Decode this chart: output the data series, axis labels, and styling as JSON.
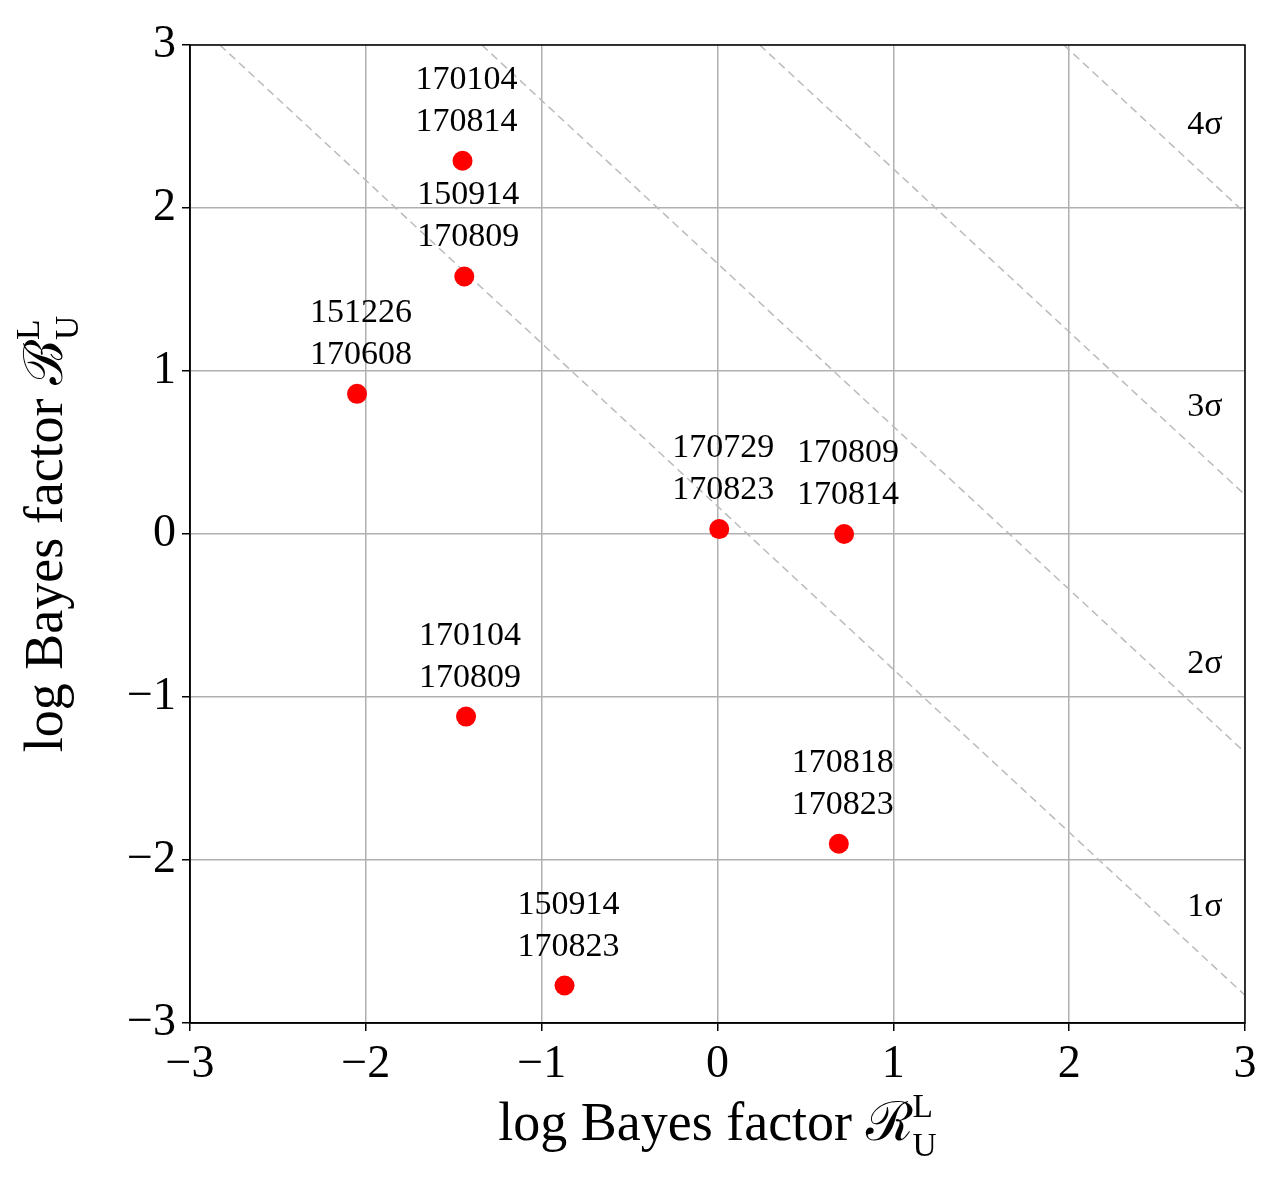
{
  "chart_data": {
    "type": "scatter",
    "xlabel": "log Bayes factor ℛ$^{L}$$_{U}$",
    "ylabel": "log Bayes factor ℬ$^{L}$$_{U}$",
    "xlim": [
      -3,
      3
    ],
    "ylim": [
      -3,
      3
    ],
    "xticks": [
      {
        "value": -3,
        "label": "−3"
      },
      {
        "value": -2,
        "label": "−2"
      },
      {
        "value": -1,
        "label": "−1"
      },
      0,
      1,
      2,
      3
    ],
    "yticks": [
      {
        "value": -3,
        "label": "−3"
      },
      {
        "value": -2,
        "label": "−2"
      },
      {
        "value": -1,
        "label": "−1"
      },
      0,
      1,
      2,
      3
    ],
    "grid": true,
    "marker": "circle",
    "series": [
      {
        "type": "scatter",
        "color": "#ff0000",
        "x": [
          -1.45,
          -1.44,
          -2.05,
          0.01,
          0.72,
          -1.43,
          0.69,
          -0.87
        ],
        "values": [
          2.29,
          1.58,
          0.86,
          0.03,
          0.0,
          -1.12,
          -1.9,
          -2.77
        ],
        "value_labels": [
          "170104\n170814",
          "150914\n170809",
          "151226\n170608",
          "170729\n170823",
          "170809\n170814",
          "170104\n170809",
          "170818\n170823",
          "150914\n170823"
        ]
      },
      {
        "type": "line",
        "name": "1σ",
        "color": "#bbbbbb",
        "line_style": "dashed",
        "marker": "none",
        "x": [
          -2.83,
          3
        ],
        "values": [
          3,
          -2.83
        ]
      },
      {
        "type": "line",
        "name": "2σ",
        "color": "#bbbbbb",
        "line_style": "dashed",
        "marker": "none",
        "x": [
          -1.34,
          3
        ],
        "values": [
          3,
          -1.34
        ]
      },
      {
        "type": "line",
        "name": "3σ",
        "color": "#bbbbbb",
        "line_style": "dashed",
        "marker": "none",
        "x": [
          0.24,
          3
        ],
        "values": [
          3,
          0.24
        ]
      },
      {
        "type": "line",
        "name": "4σ",
        "color": "#bbbbbb",
        "line_style": "dashed",
        "marker": "none",
        "x": [
          1.97,
          3
        ],
        "values": [
          3,
          1.97
        ]
      }
    ]
  }
}
